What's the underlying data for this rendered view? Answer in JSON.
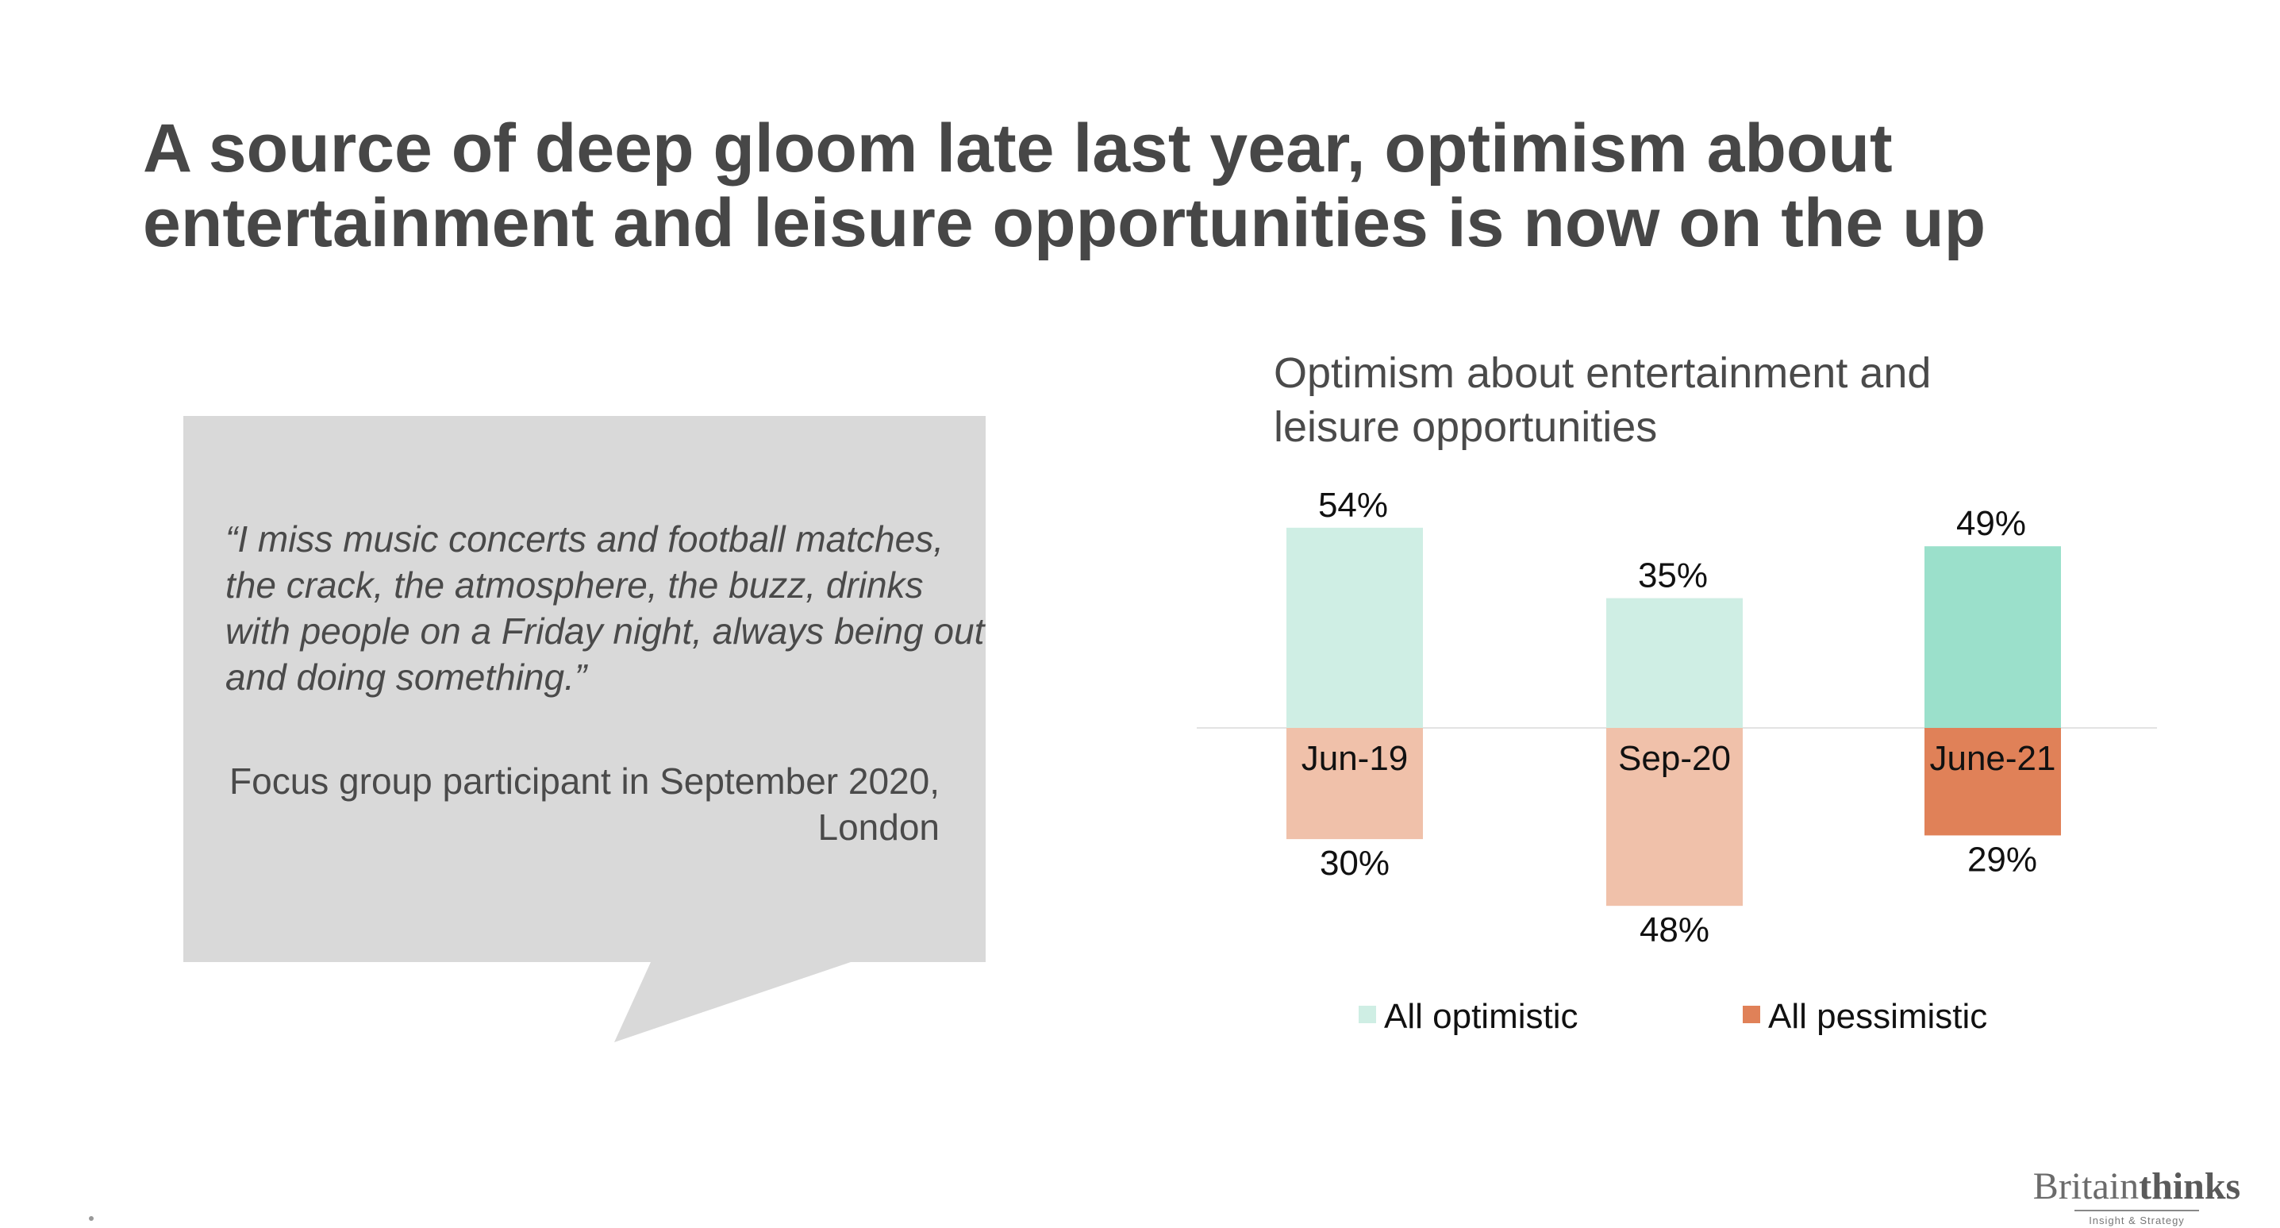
{
  "slide": {
    "title": "A source of deep gloom late last year, optimism about entertainment and leisure opportunities is now on the up"
  },
  "quote": {
    "text": "“I miss music concerts and football matches, the crack, the atmosphere, the buzz, drinks with people on a Friday night, always being out and doing something.”",
    "attribution": "Focus group participant in September 2020, London"
  },
  "logo": {
    "main": "Britain",
    "main_bold": "thinks",
    "sub": "Insight & Strategy"
  },
  "colors": {
    "optimistic_light": "#cfeee4",
    "optimistic_dark": "#9be0cb",
    "pessimistic_light": "#f0c1aa",
    "pessimistic_dark": "#e08158",
    "quote_box": "#d9d9d9",
    "axis": "#e3e3e3"
  },
  "chart_data": {
    "type": "bar",
    "title": "Optimism about entertainment and leisure opportunities",
    "categories": [
      "Jun-19",
      "Sep-20",
      "June-21"
    ],
    "series": [
      {
        "name": "All optimistic",
        "values": [
          54,
          35,
          49
        ],
        "labels": [
          "54%",
          "35%",
          "49%"
        ]
      },
      {
        "name": "All pessimistic",
        "values": [
          -30,
          -48,
          -29
        ],
        "labels": [
          "30%",
          "48%",
          "29%"
        ]
      }
    ],
    "highlight_category": "June-21",
    "legend": [
      "All optimistic",
      "All pessimistic"
    ],
    "legend_position": "bottom",
    "xlabel": "",
    "ylabel": "",
    "ylim": [
      -48,
      54
    ],
    "grid": false
  }
}
